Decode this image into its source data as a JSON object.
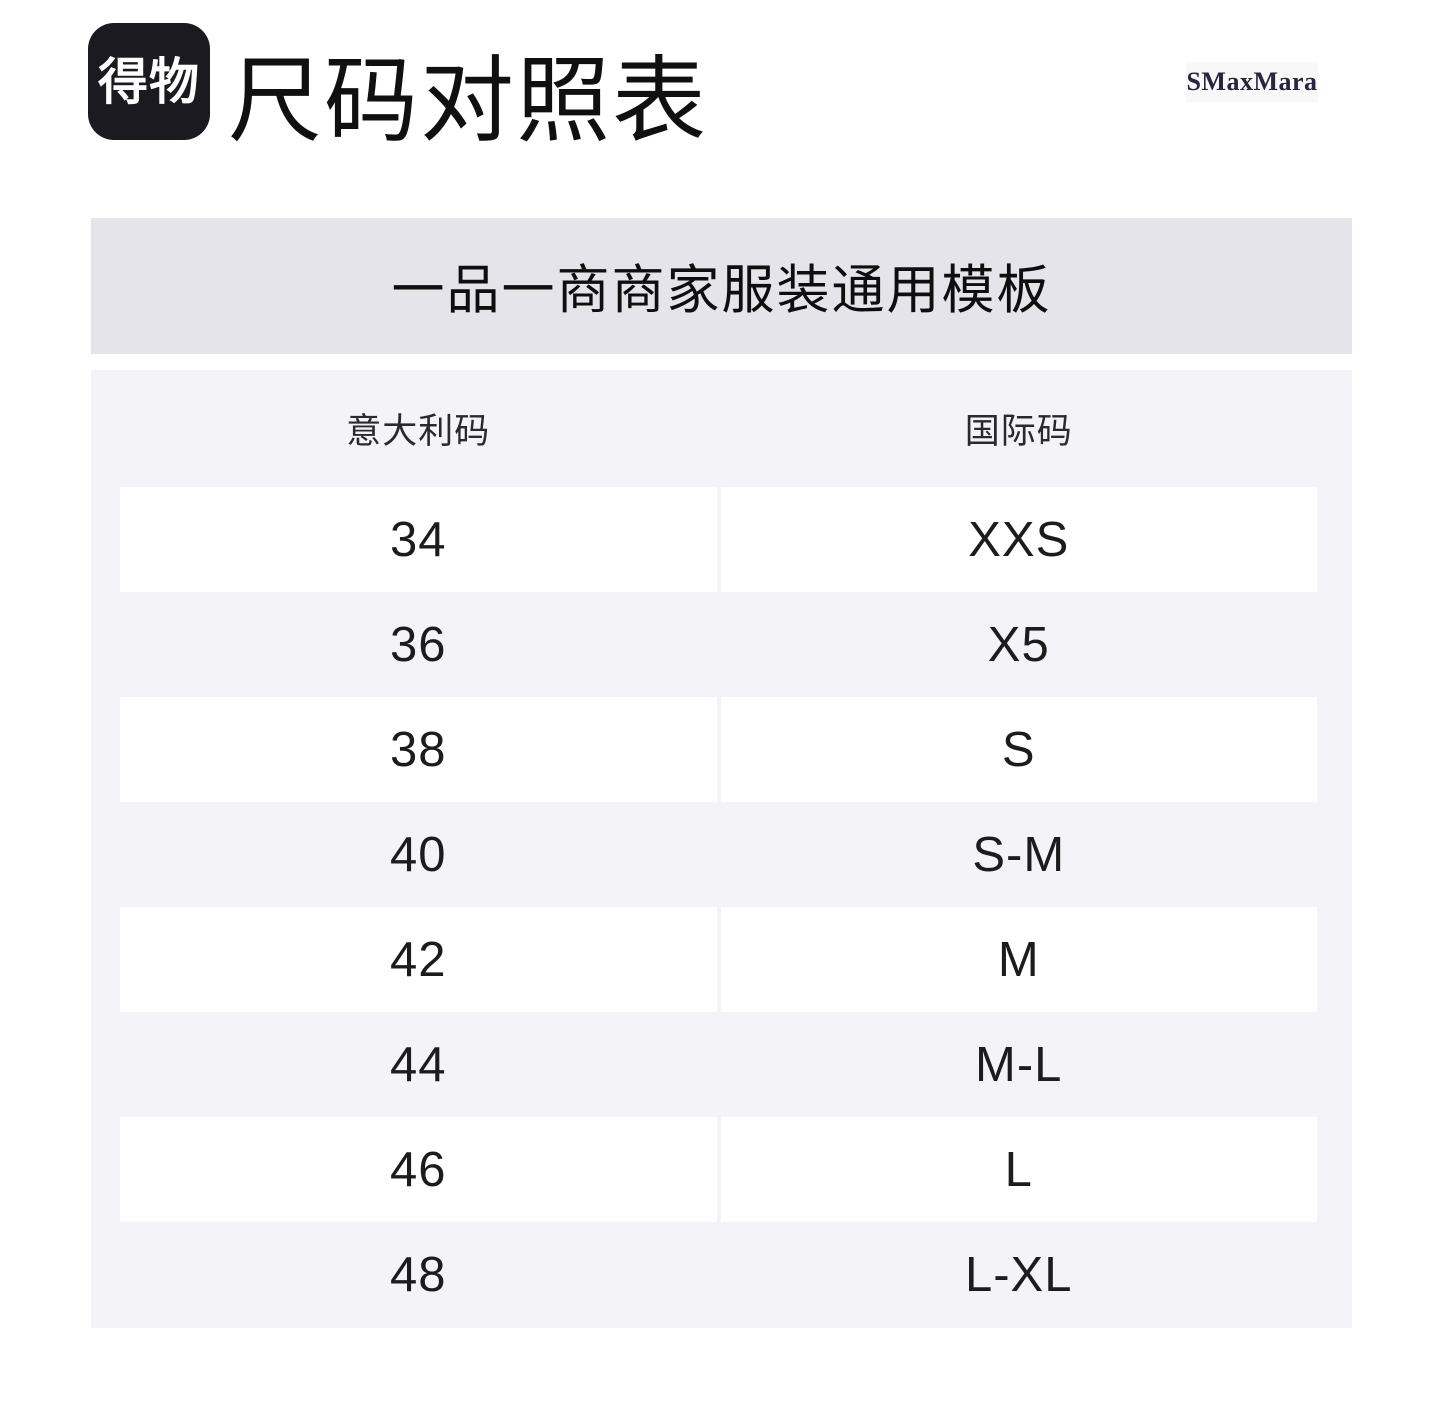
{
  "header": {
    "logo_text": "得物",
    "title": "尺码对照表",
    "brand": "SMaxMara"
  },
  "banner": {
    "text": "一品一商商家服装通用模板"
  },
  "table": {
    "columns": [
      "意大利码",
      "国际码"
    ],
    "rows": [
      {
        "italian": "34",
        "international": "XXS"
      },
      {
        "italian": "36",
        "international": "X5"
      },
      {
        "italian": "38",
        "international": "S"
      },
      {
        "italian": "40",
        "international": "S-M"
      },
      {
        "italian": "42",
        "international": "M"
      },
      {
        "italian": "44",
        "international": "M-L"
      },
      {
        "italian": "46",
        "international": "L"
      },
      {
        "italian": "48",
        "international": "L-XL"
      }
    ]
  },
  "colors": {
    "logo_bg": "#1a1a20",
    "banner_bg": "#e5e4ea",
    "table_bg": "#f4f4f8",
    "row_white": "#ffffff",
    "text": "#1c1c1c",
    "brand_text": "#26263e"
  }
}
